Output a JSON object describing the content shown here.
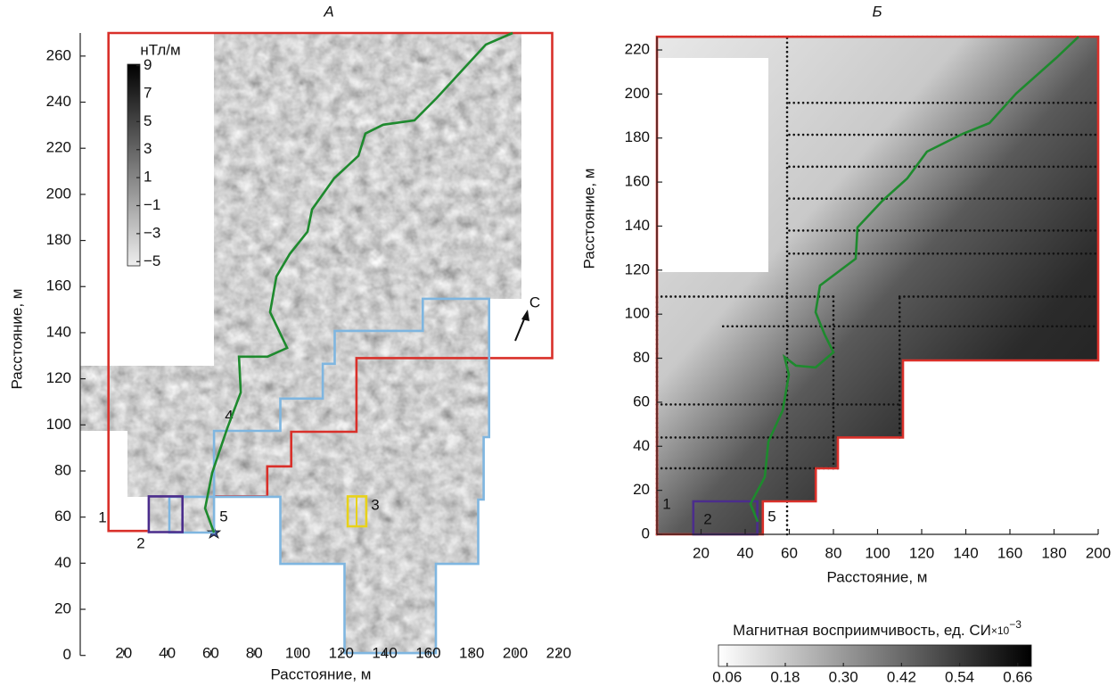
{
  "chart_data": [
    {
      "type": "map",
      "title": "А",
      "x_label": "Расстояние, м",
      "y_label": "Расстояние, м",
      "xlim": [
        0,
        222
      ],
      "ylim": [
        0,
        270
      ],
      "xticks": [
        20,
        40,
        60,
        80,
        100,
        120,
        140,
        160,
        180,
        200,
        220
      ],
      "yticks": [
        0,
        20,
        40,
        60,
        80,
        100,
        120,
        140,
        160,
        180,
        200,
        220,
        240,
        260
      ],
      "outlines": [
        {
          "name": "1",
          "color": "#d9302a",
          "closed": false,
          "x": [
            31,
            13,
            13,
            217,
            217,
            127,
            127,
            97,
            97,
            86,
            86,
            62
          ],
          "y": [
            54,
            54,
            270,
            270,
            129,
            129,
            97,
            97,
            82,
            82,
            69,
            69
          ]
        },
        {
          "name": "4",
          "color": "#7fb6e0",
          "closed": true,
          "x": [
            61.5,
            61.5,
            92,
            92,
            111.5,
            111.5,
            117,
            117,
            157.5,
            157.5,
            188,
            188,
            185.5,
            185.5,
            183,
            183,
            163.5,
            163.5,
            121.5,
            121.5,
            92,
            92,
            41,
            41
          ],
          "y": [
            53.3,
            97.4,
            97.4,
            111.4,
            111.4,
            126.5,
            126.5,
            140.8,
            140.8,
            154.7,
            154.7,
            94.7,
            94.7,
            67.6,
            67.6,
            39.7,
            39.7,
            1,
            1,
            39.7,
            39.7,
            68.8,
            68.8,
            53.3
          ]
        },
        {
          "name": "2",
          "color": "#4b2d8c",
          "closed": true,
          "x": [
            31.5,
            31.5,
            47,
            47
          ],
          "y": [
            53.5,
            69,
            69,
            53.5
          ]
        },
        {
          "name": "3",
          "color": "#e8d21a",
          "closed": true,
          "x": [
            123,
            123,
            131.5,
            131.5
          ],
          "y": [
            56,
            69,
            69,
            56
          ]
        },
        {
          "name": "5",
          "color": "#1e8a2e",
          "closed": false,
          "x": [
            61.5,
            57.4,
            60.7,
            67.6,
            73.8,
            73,
            86.1,
            95.1,
            87.3,
            90.2,
            96.3,
            104.5,
            106.6,
            116.8,
            127.9,
            131.1,
            139.3,
            153.7,
            163.9,
            186.5,
            198.8
          ],
          "y": [
            53.3,
            63.8,
            79.3,
            98.6,
            114.1,
            129.6,
            129.6,
            133.4,
            148.9,
            164.4,
            174.1,
            183.8,
            193.5,
            207,
            216.7,
            226.4,
            230.2,
            232.1,
            241.8,
            265,
            270
          ]
        }
      ],
      "colorbar": {
        "label": "нТл/м",
        "clim": [
          -5.3,
          9.1
        ],
        "ticks": [
          9,
          7,
          5,
          3,
          1,
          {
            "value": -1,
            "label": "−1"
          },
          {
            "value": -3,
            "label": "−3"
          },
          {
            "value": -5,
            "label": "−5"
          }
        ]
      },
      "annotation": "С"
    },
    {
      "type": "map",
      "title": "Б",
      "x_label": "Расстояние, м",
      "y_label": "Расстояние, м",
      "xlim": [
        0,
        200
      ],
      "ylim": [
        0,
        226
      ],
      "xticks": [
        20,
        40,
        60,
        80,
        100,
        120,
        140,
        160,
        180,
        200
      ],
      "yticks": [
        0,
        20,
        40,
        60,
        80,
        100,
        120,
        140,
        160,
        180,
        200,
        220
      ],
      "outlines": [
        {
          "name": "1",
          "color": "#d9302a",
          "closed": true,
          "x": [
            0,
            0,
            200,
            200,
            111.5,
            111.5,
            82,
            82,
            72,
            72,
            48,
            48
          ],
          "y": [
            0,
            226,
            226,
            79,
            79,
            44,
            44,
            30,
            30,
            15,
            15,
            0
          ]
        },
        {
          "name": "2",
          "color": "#4b2d8c",
          "closed": true,
          "x": [
            16.5,
            16.5,
            45.5,
            45.5
          ],
          "y": [
            0,
            15,
            15,
            0
          ]
        },
        {
          "name": "5",
          "color": "#1e8a2e",
          "closed": false,
          "x": [
            45.7,
            42.4,
            48.9,
            50.5,
            57,
            59.8,
            57.8,
            63,
            71.9,
            80,
            76,
            71.9,
            73.9,
            90.1,
            90.9,
            102.2,
            113.5,
            122.4,
            138.6,
            150.7,
            162.8,
            181,
            191.1
          ],
          "y": [
            5.7,
            13.8,
            26,
            42.1,
            56.3,
            72.5,
            80.6,
            76.6,
            75.8,
            82.7,
            90.8,
            100.9,
            113,
            125.2,
            139.4,
            151.5,
            161.7,
            173.8,
            181.9,
            186.8,
            200.2,
            216.4,
            226
          ]
        }
      ],
      "survey_lines": [
        {
          "y": 226,
          "x": [
            30,
            200
          ]
        },
        {
          "y": 196,
          "x": [
            60,
            200
          ]
        },
        {
          "y": 181.5,
          "x": [
            60,
            200
          ]
        },
        {
          "y": 167,
          "x": [
            60,
            200
          ]
        },
        {
          "y": 152.5,
          "x": [
            60,
            200
          ]
        },
        {
          "y": 138,
          "x": [
            60,
            200
          ]
        },
        {
          "y": 127.5,
          "x": [
            60,
            200
          ]
        },
        {
          "y": 108,
          "x": [
            0,
            80
          ]
        },
        {
          "y": 108,
          "x": [
            110,
            200
          ]
        },
        {
          "y": 94.5,
          "x": [
            30,
            200
          ]
        },
        {
          "y": 59,
          "x": [
            0,
            110
          ]
        },
        {
          "y": 44,
          "x": [
            0,
            82
          ]
        },
        {
          "y": 30,
          "x": [
            0,
            82
          ]
        }
      ],
      "survey_columns": [
        {
          "x": 0,
          "y": [
            0,
            108
          ]
        },
        {
          "x": 59,
          "y": [
            0,
            226
          ]
        },
        {
          "x": 80,
          "y": [
            30,
            108
          ]
        },
        {
          "x": 110,
          "y": [
            44,
            108
          ]
        }
      ],
      "colorbar": {
        "label": "Магнитная восприимчивость, ед. СИ",
        "label_multiplier": "×10",
        "label_exponent": "−3",
        "clim": [
          0.042,
          0.688
        ],
        "ticks": [
          0.06,
          0.18,
          {
            "value": 0.3,
            "label": "0.30"
          },
          0.42,
          0.54,
          0.66
        ]
      }
    }
  ]
}
